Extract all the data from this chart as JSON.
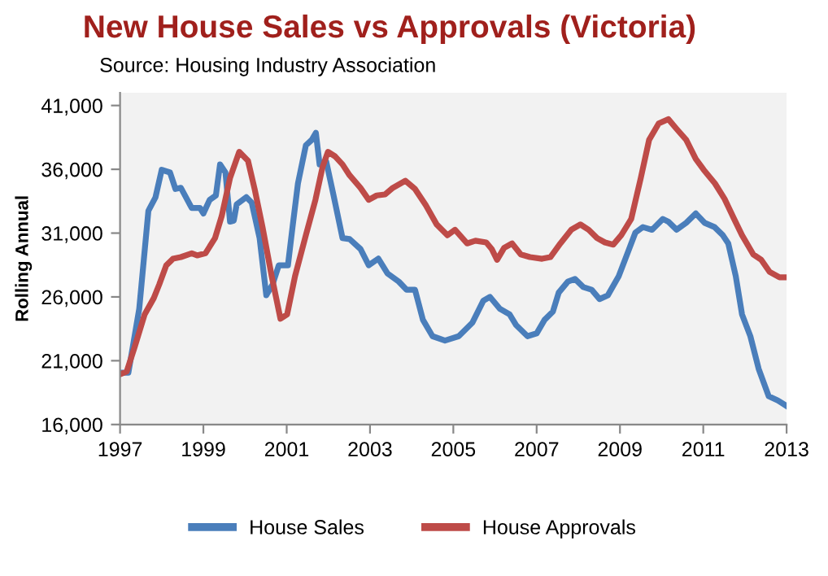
{
  "chart_data": {
    "type": "line",
    "title": "New House Sales vs Approvals (Victoria)",
    "subtitle": "Source: Housing Industry Association",
    "ylabel": "Rolling Annual",
    "xlim": [
      1997,
      2013
    ],
    "xticks": [
      1997,
      1999,
      2001,
      2003,
      2005,
      2007,
      2009,
      2011,
      2013
    ],
    "ylim": [
      16000,
      42000
    ],
    "yticks": [
      {
        "value": 16000,
        "label": "16,000"
      },
      {
        "value": 21000,
        "label": "21,000"
      },
      {
        "value": 26000,
        "label": "26,000"
      },
      {
        "value": 31000,
        "label": "31,000"
      },
      {
        "value": 36000,
        "label": "36,000"
      },
      {
        "value": 41000,
        "label": "41,000"
      }
    ],
    "grid": false,
    "legend": "bottom",
    "marker": "none",
    "line_style": "solid",
    "series": [
      {
        "name": "House Sales",
        "color": "#4a7ebb",
        "x": [
          1997.0,
          1997.2,
          1997.46,
          1997.68,
          1997.85,
          1998.0,
          1998.2,
          1998.33,
          1998.46,
          1998.72,
          1998.92,
          1999.0,
          1999.15,
          1999.3,
          1999.4,
          1999.53,
          1999.64,
          1999.73,
          1999.8,
          2000.03,
          2000.16,
          2000.35,
          2000.51,
          2000.66,
          2000.81,
          2001.03,
          2001.14,
          2001.27,
          2001.46,
          2001.6,
          2001.7,
          2001.79,
          2001.95,
          2002.12,
          2002.34,
          2002.51,
          2002.77,
          2002.97,
          2003.2,
          2003.42,
          2003.69,
          2003.88,
          2004.08,
          2004.27,
          2004.5,
          2004.8,
          2005.13,
          2005.46,
          2005.72,
          2005.88,
          2006.12,
          2006.35,
          2006.51,
          2006.78,
          2007.0,
          2007.19,
          2007.39,
          2007.53,
          2007.75,
          2007.92,
          2008.12,
          2008.32,
          2008.51,
          2008.71,
          2008.97,
          2009.17,
          2009.37,
          2009.55,
          2009.77,
          2010.03,
          2010.16,
          2010.36,
          2010.59,
          2010.82,
          2011.03,
          2011.27,
          2011.47,
          2011.6,
          2011.78,
          2011.93,
          2012.13,
          2012.33,
          2012.57,
          2012.79,
          2013.0
        ],
        "values": [
          20060,
          20060,
          25060,
          32750,
          33800,
          35960,
          35750,
          34460,
          34550,
          32970,
          32970,
          32540,
          33600,
          33950,
          36380,
          35750,
          31900,
          31980,
          33260,
          33820,
          33390,
          30600,
          26130,
          26970,
          28480,
          28480,
          31470,
          34890,
          37880,
          38300,
          38860,
          36380,
          36600,
          34030,
          30610,
          30530,
          29760,
          28480,
          29000,
          27840,
          27200,
          26560,
          26560,
          24200,
          22920,
          22580,
          22920,
          23990,
          25700,
          26000,
          25060,
          24630,
          23780,
          22920,
          23140,
          24200,
          24850,
          26340,
          27200,
          27410,
          26770,
          26560,
          25830,
          26130,
          27620,
          29330,
          31040,
          31470,
          31260,
          32110,
          31900,
          31260,
          31810,
          32540,
          31810,
          31470,
          30830,
          30190,
          27620,
          24630,
          22920,
          20360,
          18220,
          17880,
          17450
        ]
      },
      {
        "name": "House Approvals",
        "color": "#be4b48",
        "x": [
          1997.0,
          1997.16,
          1997.35,
          1997.59,
          1997.81,
          1997.94,
          1998.11,
          1998.27,
          1998.46,
          1998.72,
          1998.85,
          1999.05,
          1999.28,
          1999.44,
          1999.64,
          1999.86,
          2000.07,
          2000.23,
          2000.42,
          2000.64,
          2000.85,
          2001.01,
          2001.2,
          2001.46,
          2001.69,
          2001.86,
          2001.99,
          2002.16,
          2002.34,
          2002.51,
          2002.77,
          2002.97,
          2003.16,
          2003.36,
          2003.55,
          2003.85,
          2004.08,
          2004.34,
          2004.6,
          2004.86,
          2005.04,
          2005.33,
          2005.53,
          2005.79,
          2005.92,
          2006.05,
          2006.22,
          2006.41,
          2006.62,
          2006.84,
          2007.13,
          2007.33,
          2007.57,
          2007.83,
          2008.05,
          2008.25,
          2008.45,
          2008.64,
          2008.84,
          2009.03,
          2009.27,
          2009.5,
          2009.7,
          2009.93,
          2010.16,
          2010.36,
          2010.59,
          2010.82,
          2011.01,
          2011.28,
          2011.51,
          2011.74,
          2011.93,
          2012.2,
          2012.39,
          2012.59,
          2012.83,
          2013.0
        ],
        "values": [
          19930,
          20150,
          22070,
          24630,
          25910,
          26970,
          28480,
          28990,
          29120,
          29420,
          29250,
          29420,
          30610,
          32330,
          35320,
          37370,
          36680,
          34460,
          31470,
          27620,
          24290,
          24630,
          27620,
          30830,
          33610,
          36170,
          37370,
          37020,
          36380,
          35530,
          34550,
          33610,
          33950,
          34030,
          34550,
          35100,
          34460,
          33180,
          31680,
          30830,
          31260,
          30190,
          30400,
          30270,
          29760,
          28910,
          29850,
          30190,
          29330,
          29120,
          28990,
          29120,
          30190,
          31260,
          31680,
          31260,
          30610,
          30270,
          30100,
          30830,
          32110,
          35320,
          38310,
          39590,
          39930,
          39160,
          38310,
          36810,
          35960,
          34890,
          33690,
          32110,
          30830,
          29330,
          28910,
          27970,
          27540,
          27540
        ]
      }
    ]
  }
}
